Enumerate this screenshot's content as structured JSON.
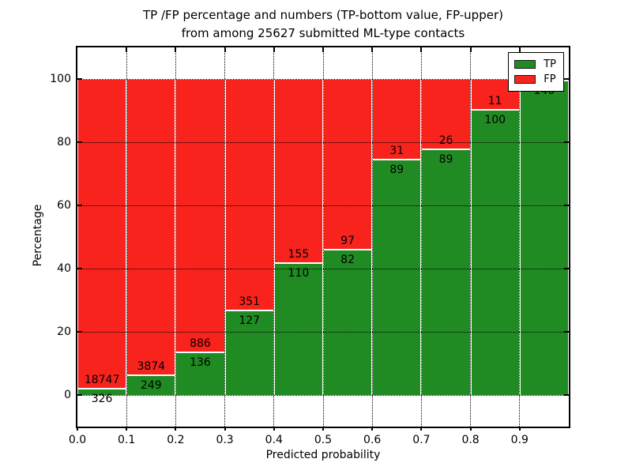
{
  "title": {
    "line1": "TP /FP percentage and numbers (TP-bottom value, FP-upper)",
    "line2": "from among 25627 submitted ML-type contacts"
  },
  "chart_data": {
    "type": "bar",
    "stacked": true,
    "title": "TP /FP percentage and numbers (TP-bottom value, FP-upper) from among 25627 submitted ML-type contacts",
    "xlabel": "Predicted probability",
    "ylabel": "Percentage",
    "total_contacts": 25627,
    "xlim": [
      0.0,
      1.0
    ],
    "ylim": [
      -10,
      110
    ],
    "grid": true,
    "x_tick_labels": [
      "0.0",
      "0.1",
      "0.2",
      "0.3",
      "0.4",
      "0.5",
      "0.6",
      "0.7",
      "0.8",
      "0.9"
    ],
    "y_tick_values": [
      0,
      20,
      40,
      60,
      80,
      100
    ],
    "colors": {
      "tp": "#208b22",
      "fp": "#f8231c"
    },
    "legend": {
      "position": "upper right",
      "entries": [
        {
          "label": "TP",
          "color": "#208b22"
        },
        {
          "label": "FP",
          "color": "#f8231c"
        }
      ]
    },
    "bars": [
      {
        "bin_start": 0.0,
        "tp": 326,
        "fp": 18747,
        "fp_label_visible": true
      },
      {
        "bin_start": 0.1,
        "tp": 249,
        "fp": 3874,
        "fp_label_visible": true
      },
      {
        "bin_start": 0.2,
        "tp": 136,
        "fp": 886,
        "fp_label_visible": true
      },
      {
        "bin_start": 0.3,
        "tp": 127,
        "fp": 351,
        "fp_label_visible": true
      },
      {
        "bin_start": 0.4,
        "tp": 110,
        "fp": 155,
        "fp_label_visible": true
      },
      {
        "bin_start": 0.5,
        "tp": 82,
        "fp": 97,
        "fp_label_visible": true
      },
      {
        "bin_start": 0.6,
        "tp": 89,
        "fp": 31,
        "fp_label_visible": true
      },
      {
        "bin_start": 0.7,
        "tp": 89,
        "fp": 26,
        "fp_label_visible": true
      },
      {
        "bin_start": 0.8,
        "tp": 100,
        "fp": 11,
        "fp_label_visible": true
      },
      {
        "bin_start": 0.9,
        "tp": 140,
        "fp": 1,
        "fp_label_visible": false
      }
    ]
  }
}
